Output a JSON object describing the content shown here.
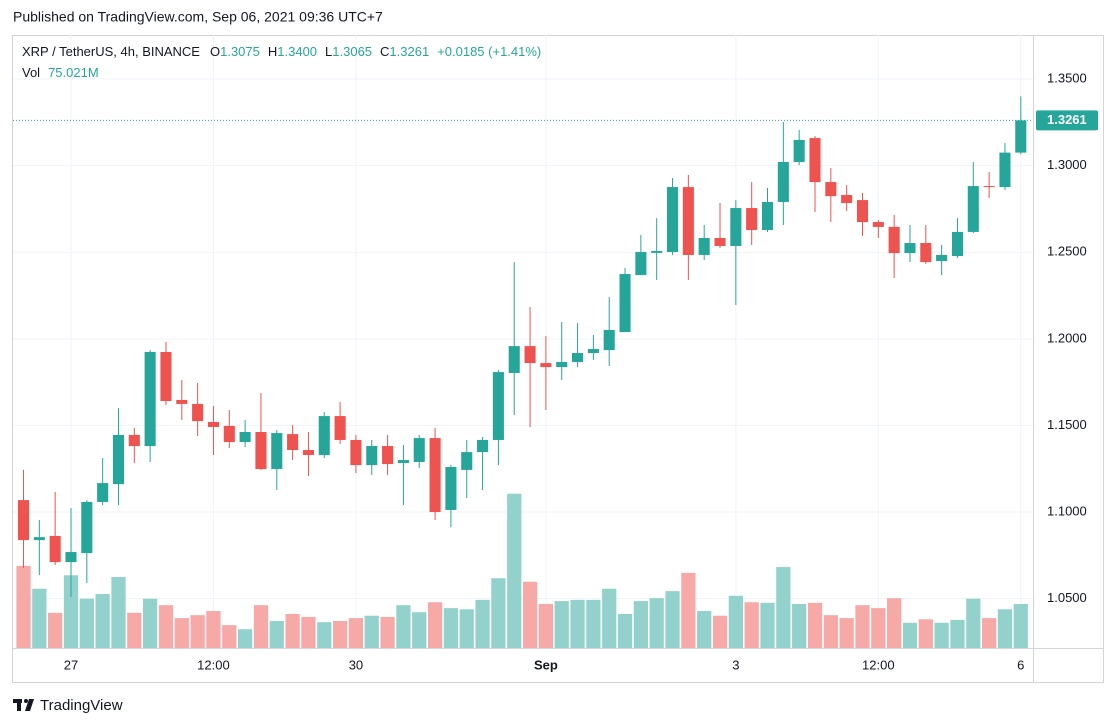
{
  "header": {
    "published": "Published on TradingView.com, Sep 06, 2021 09:36 UTC+7"
  },
  "chart_data": {
    "type": "candlestick",
    "symbol": "XRP / TetherUS, 4h, BINANCE",
    "ohlc_legend": [
      {
        "key": "O",
        "text": "1.3075"
      },
      {
        "key": "H",
        "text": "1.3400"
      },
      {
        "key": "L",
        "text": "1.3065"
      },
      {
        "key": "C",
        "text": "1.3261"
      }
    ],
    "change": "+0.0185 (+1.41%)",
    "volume_label": "Vol",
    "volume_legend": "75.021M",
    "categories": [
      null,
      null,
      null,
      "27",
      null,
      null,
      null,
      null,
      null,
      null,
      null,
      null,
      "12:00",
      null,
      null,
      null,
      null,
      null,
      null,
      null,
      null,
      "30",
      null,
      null,
      null,
      null,
      null,
      null,
      null,
      null,
      null,
      null,
      null,
      "Sep",
      null,
      null,
      null,
      null,
      null,
      null,
      null,
      null,
      null,
      null,
      null,
      "3",
      null,
      null,
      null,
      null,
      null,
      null,
      null,
      null,
      "12:00",
      null,
      null,
      null,
      null,
      null,
      null,
      null,
      null,
      "6"
    ],
    "open": [
      1.1069,
      1.0838,
      1.0862,
      1.0711,
      1.0763,
      1.1058,
      1.1161,
      1.1445,
      1.1381,
      1.1924,
      1.1647,
      1.1624,
      1.152,
      1.1497,
      1.1404,
      1.1462,
      1.1248,
      1.145,
      1.1358,
      1.1329,
      1.1554,
      1.1416,
      1.1271,
      1.1381,
      1.1283,
      1.1289,
      1.1427,
      1.1012,
      1.1243,
      1.1346,
      1.1416,
      1.1803,
      1.1958,
      1.186,
      1.1837,
      1.1866,
      1.1918,
      1.1935,
      1.2039,
      1.2368,
      1.2496,
      1.2501,
      1.2876,
      1.2484,
      1.2582,
      1.2536,
      1.2755,
      1.2628,
      1.279,
      1.3021,
      1.3159,
      1.2905,
      1.283,
      1.2801,
      1.2674,
      1.2646,
      1.2495,
      1.2553,
      1.2449,
      1.2478,
      1.2617,
      1.2882,
      1.2876,
      1.3075
    ],
    "high": [
      1.1243,
      1.0954,
      1.1115,
      1.1023,
      1.1069,
      1.1312,
      1.16,
      1.1485,
      1.1935,
      1.1982,
      1.1762,
      1.1745,
      1.1612,
      1.1589,
      1.1531,
      1.1687,
      1.1473,
      1.1502,
      1.1462,
      1.1577,
      1.1635,
      1.1445,
      1.1416,
      1.1445,
      1.1387,
      1.1445,
      1.1485,
      1.1271,
      1.1416,
      1.1433,
      1.182,
      1.2443,
      1.2184,
      1.2016,
      1.2097,
      1.2091,
      1.2022,
      1.2241,
      1.2409,
      1.2599,
      1.2697,
      1.2928,
      1.2946,
      1.2657,
      1.2784,
      1.2801,
      1.2905,
      1.2871,
      1.3252,
      1.3206,
      1.3171,
      1.2986,
      1.2888,
      1.2842,
      1.2686,
      1.2715,
      1.2657,
      1.2657,
      1.2542,
      1.2697,
      1.3021,
      1.2963,
      1.313,
      1.34
    ],
    "low": [
      1.0677,
      1.0636,
      1.0694,
      1.0509,
      1.059,
      1.104,
      1.104,
      1.1283,
      1.1289,
      1.1618,
      1.1531,
      1.1439,
      1.1329,
      1.1369,
      1.1375,
      1.1243,
      1.1127,
      1.13,
      1.1208,
      1.1312,
      1.1393,
      1.1225,
      1.1214,
      1.1214,
      1.104,
      1.1254,
      1.0954,
      1.0913,
      1.1081,
      1.1127,
      1.1271,
      1.156,
      1.1491,
      1.1589,
      1.1762,
      1.1837,
      1.1878,
      1.1843,
      1.2039,
      1.2368,
      1.234,
      1.2484,
      1.234,
      1.2455,
      1.2524,
      1.2195,
      1.2542,
      1.2617,
      1.2657,
      1.3003,
      1.2732,
      1.2674,
      1.2738,
      1.2594,
      1.2582,
      1.2351,
      1.2443,
      1.2432,
      1.2368,
      1.2467,
      1.2611,
      1.2813,
      1.2859,
      1.3065
    ],
    "close": [
      1.0838,
      1.0855,
      1.0711,
      1.0769,
      1.1058,
      1.1167,
      1.1445,
      1.1381,
      1.1924,
      1.1641,
      1.1624,
      1.1525,
      1.1491,
      1.1404,
      1.1462,
      1.1248,
      1.1456,
      1.1358,
      1.1329,
      1.1554,
      1.1416,
      1.1271,
      1.1381,
      1.1277,
      1.13,
      1.1427,
      1.1,
      1.126,
      1.1346,
      1.1416,
      1.1808,
      1.1958,
      1.186,
      1.1837,
      1.1866,
      1.1918,
      1.1941,
      1.2051,
      1.2374,
      1.2501,
      1.2507,
      1.2876,
      1.2484,
      1.2582,
      1.2536,
      1.2755,
      1.2628,
      1.279,
      1.3021,
      1.3148,
      1.2905,
      1.2824,
      1.2784,
      1.2674,
      1.2646,
      1.2495,
      1.2553,
      1.2443,
      1.2484,
      1.2617,
      1.2882,
      1.2876,
      1.3075,
      1.3261
    ],
    "volume": [
      140,
      101,
      60,
      124,
      84,
      92,
      121,
      60,
      84,
      73,
      51,
      56,
      63,
      39,
      32,
      73,
      46,
      58,
      53,
      44,
      46,
      51,
      55,
      53,
      73,
      61,
      78,
      68,
      66,
      82,
      119,
      263,
      113,
      75,
      80,
      82,
      82,
      101,
      58,
      80,
      85,
      97,
      128,
      63,
      55,
      89,
      78,
      77,
      138,
      75,
      77,
      56,
      51,
      73,
      68,
      85,
      43,
      49,
      43,
      48,
      84,
      51,
      66,
      75.021
    ],
    "up_color": "#26a69a",
    "down_color": "#ef5350",
    "volume_up_color": "#93d2cc",
    "volume_down_color": "#f7a9a7",
    "ylim": [
      1.0215,
      1.3754
    ],
    "yticks": [
      {
        "value": 1.05,
        "label": "1.0500"
      },
      {
        "value": 1.1,
        "label": "1.1000"
      },
      {
        "value": 1.15,
        "label": "1.1500"
      },
      {
        "value": 1.2,
        "label": "1.2000"
      },
      {
        "value": 1.25,
        "label": "1.2500"
      },
      {
        "value": 1.3,
        "label": "1.3000"
      },
      {
        "value": 1.35,
        "label": "1.3500"
      }
    ],
    "volume_ylim": [
      0,
      1045
    ],
    "last_price": {
      "value": 1.3261,
      "label": "1.3261"
    },
    "grid": true
  },
  "footer": {
    "brand": "TradingView"
  }
}
